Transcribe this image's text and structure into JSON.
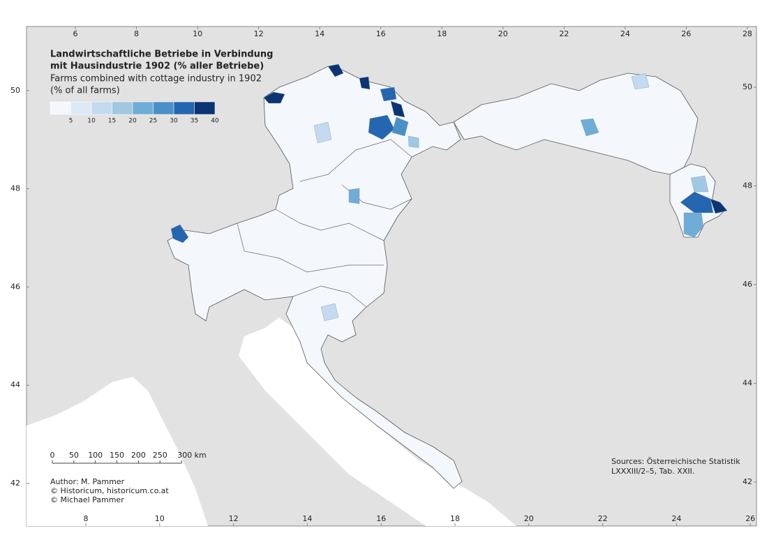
{
  "map": {
    "title": [
      "Landwirtschaftliche Betriebe in Verbindung",
      "mit Hausindustrie 1902 (% aller Betriebe)"
    ],
    "subtitle": [
      "Farms combined with cottage industry in 1902",
      "(% of all farms)"
    ],
    "legend": {
      "labels": [
        5,
        10,
        15,
        20,
        25,
        30,
        35,
        40
      ],
      "colors": [
        "#f4f8fd",
        "#dbe8f5",
        "#c4daee",
        "#a0c8e3",
        "#6fadd6",
        "#4a90c7",
        "#2466b0",
        "#0b3473"
      ]
    },
    "top_ticks": [
      6,
      8,
      10,
      12,
      14,
      16,
      18,
      20,
      22,
      24,
      26,
      28
    ],
    "bottom_ticks": [
      8,
      10,
      12,
      14,
      16,
      18,
      20,
      22,
      24,
      26
    ],
    "left_ticks": [
      42,
      44,
      46,
      48,
      50
    ],
    "right_ticks": [
      42,
      44,
      46,
      48,
      50
    ],
    "scale": [
      0,
      50,
      100,
      150,
      200,
      250,
      {
        "value": 300,
        "label": "300 km"
      }
    ],
    "credits": [
      "Author: M. Pammer",
      "© Historicum, historicum.co.at",
      "© Michael Pammer"
    ],
    "sources": [
      "Sources: Österreichische Statistik",
      "LXXXIII/2–5, Tab. XXII."
    ],
    "regions": [
      45,
      45,
      38,
      38,
      32,
      30,
      45,
      32,
      22,
      30,
      22,
      22,
      27,
      17,
      12,
      12,
      12,
      17
    ]
  }
}
